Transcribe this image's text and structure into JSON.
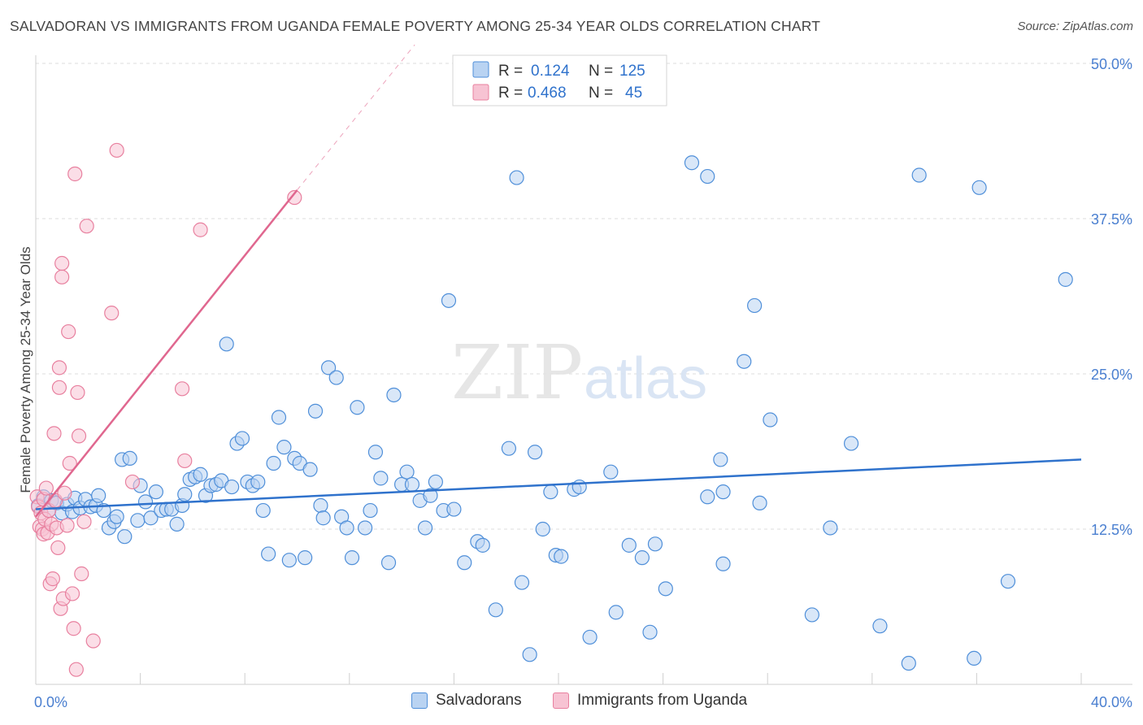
{
  "title": "SALVADORAN VS IMMIGRANTS FROM UGANDA FEMALE POVERTY AMONG 25-34 YEAR OLDS CORRELATION CHART",
  "source": "Source: ZipAtlas.com",
  "watermark": {
    "zip": "ZIP",
    "atlas": "atlas"
  },
  "colors": {
    "blue": "#4f8fd9",
    "blue_fill": "#b9d3f2",
    "blue_line": "#2f72cc",
    "pink": "#e8809f",
    "pink_fill": "#f7c3d3",
    "pink_line": "#e0678f",
    "tick_label": "#4a7fd0",
    "grid": "#dcdcdc"
  },
  "legend_top": [
    {
      "r_label": "R =",
      "r_value": "0.124",
      "n_label": "N =",
      "n_value": "125"
    },
    {
      "r_label": "R =",
      "r_value": "0.468",
      "n_label": "N =",
      "n_value": "45"
    }
  ],
  "legend_bottom": [
    "Salvadorans",
    "Immigrants from Uganda"
  ],
  "chart_data": {
    "type": "scatter",
    "title": "SALVADORAN VS IMMIGRANTS FROM UGANDA FEMALE POVERTY AMONG 25-34 YEAR OLDS CORRELATION CHART",
    "xlabel": "",
    "ylabel": "Female Poverty Among 25-34 Year Olds",
    "xlim": [
      0,
      40
    ],
    "ylim": [
      0,
      50
    ],
    "x_tick_labels": [
      "0.0%",
      "40.0%"
    ],
    "y_ticks": [
      12.5,
      25.0,
      37.5,
      50.0
    ],
    "y_tick_labels": [
      "12.5%",
      "25.0%",
      "37.5%",
      "50.0%"
    ],
    "grid": "horizontal dashed",
    "legend_position": "top-center",
    "series": [
      {
        "name": "Salvadorans",
        "r": 0.124,
        "n": 125,
        "trend": {
          "x": [
            0,
            40
          ],
          "y": [
            14.1,
            18.1
          ]
        },
        "points": [
          [
            0.1,
            14.4
          ],
          [
            0.3,
            15.1
          ],
          [
            0.5,
            14.0
          ],
          [
            0.6,
            14.8
          ],
          [
            0.8,
            14.6
          ],
          [
            1.0,
            13.8
          ],
          [
            1.2,
            14.5
          ],
          [
            1.4,
            13.9
          ],
          [
            1.5,
            15.0
          ],
          [
            1.7,
            14.2
          ],
          [
            1.9,
            14.9
          ],
          [
            2.1,
            14.3
          ],
          [
            2.3,
            14.4
          ],
          [
            2.4,
            15.2
          ],
          [
            2.6,
            14.0
          ],
          [
            2.8,
            12.6
          ],
          [
            3.0,
            13.1
          ],
          [
            3.1,
            13.5
          ],
          [
            3.3,
            18.1
          ],
          [
            3.4,
            11.9
          ],
          [
            3.6,
            18.2
          ],
          [
            3.9,
            13.2
          ],
          [
            4.0,
            16.0
          ],
          [
            4.2,
            14.7
          ],
          [
            4.4,
            13.4
          ],
          [
            4.6,
            15.5
          ],
          [
            4.8,
            14.0
          ],
          [
            5.0,
            14.1
          ],
          [
            5.2,
            14.1
          ],
          [
            5.4,
            12.9
          ],
          [
            5.6,
            14.4
          ],
          [
            5.7,
            15.3
          ],
          [
            5.9,
            16.5
          ],
          [
            6.1,
            16.7
          ],
          [
            6.3,
            16.9
          ],
          [
            6.5,
            15.2
          ],
          [
            6.7,
            16.0
          ],
          [
            6.9,
            16.1
          ],
          [
            7.1,
            16.4
          ],
          [
            7.3,
            27.4
          ],
          [
            7.5,
            15.9
          ],
          [
            7.7,
            19.4
          ],
          [
            7.9,
            19.8
          ],
          [
            8.1,
            16.3
          ],
          [
            8.3,
            16.0
          ],
          [
            8.5,
            16.3
          ],
          [
            8.7,
            14.0
          ],
          [
            8.9,
            10.5
          ],
          [
            9.1,
            17.8
          ],
          [
            9.3,
            21.5
          ],
          [
            9.5,
            19.1
          ],
          [
            9.7,
            10.0
          ],
          [
            9.9,
            18.2
          ],
          [
            10.1,
            17.8
          ],
          [
            10.3,
            10.2
          ],
          [
            10.5,
            17.3
          ],
          [
            10.7,
            22.0
          ],
          [
            10.9,
            14.4
          ],
          [
            11.0,
            13.4
          ],
          [
            11.2,
            25.5
          ],
          [
            11.5,
            24.7
          ],
          [
            11.7,
            13.5
          ],
          [
            11.9,
            12.6
          ],
          [
            12.1,
            10.2
          ],
          [
            12.3,
            22.3
          ],
          [
            12.6,
            12.6
          ],
          [
            12.8,
            14.0
          ],
          [
            13.0,
            18.7
          ],
          [
            13.2,
            16.6
          ],
          [
            13.5,
            9.8
          ],
          [
            13.7,
            23.3
          ],
          [
            14.0,
            16.1
          ],
          [
            14.2,
            17.1
          ],
          [
            14.4,
            16.1
          ],
          [
            14.7,
            14.8
          ],
          [
            14.9,
            12.6
          ],
          [
            15.1,
            15.2
          ],
          [
            15.3,
            16.3
          ],
          [
            15.6,
            14.0
          ],
          [
            15.8,
            30.9
          ],
          [
            16.0,
            14.1
          ],
          [
            16.4,
            9.8
          ],
          [
            16.9,
            11.5
          ],
          [
            17.1,
            11.2
          ],
          [
            17.6,
            6.0
          ],
          [
            18.1,
            19.0
          ],
          [
            18.4,
            40.8
          ],
          [
            18.6,
            8.2
          ],
          [
            18.9,
            2.4
          ],
          [
            19.1,
            18.7
          ],
          [
            19.4,
            12.5
          ],
          [
            19.7,
            15.5
          ],
          [
            19.9,
            10.4
          ],
          [
            20.1,
            10.3
          ],
          [
            20.6,
            15.7
          ],
          [
            20.8,
            15.9
          ],
          [
            21.2,
            3.8
          ],
          [
            22.0,
            17.1
          ],
          [
            22.2,
            5.8
          ],
          [
            22.7,
            11.2
          ],
          [
            23.2,
            10.2
          ],
          [
            23.5,
            4.2
          ],
          [
            23.7,
            11.3
          ],
          [
            24.1,
            7.7
          ],
          [
            25.1,
            42.0
          ],
          [
            25.7,
            40.9
          ],
          [
            25.7,
            15.1
          ],
          [
            26.2,
            18.1
          ],
          [
            26.3,
            15.5
          ],
          [
            26.3,
            9.7
          ],
          [
            27.1,
            26.0
          ],
          [
            27.5,
            30.5
          ],
          [
            27.7,
            14.6
          ],
          [
            28.1,
            21.3
          ],
          [
            29.7,
            5.6
          ],
          [
            30.4,
            12.6
          ],
          [
            31.2,
            19.4
          ],
          [
            32.3,
            4.7
          ],
          [
            33.4,
            1.7
          ],
          [
            33.8,
            41.0
          ],
          [
            35.9,
            2.1
          ],
          [
            36.1,
            40.0
          ],
          [
            37.2,
            8.3
          ],
          [
            39.4,
            32.6
          ]
        ]
      },
      {
        "name": "Immigrants from Uganda",
        "r": 0.468,
        "n": 45,
        "trend": {
          "x": [
            0,
            10.0
          ],
          "y": [
            13.5,
            39.8
          ]
        },
        "trend_dashed": {
          "x": [
            10.0,
            14.5
          ],
          "y": [
            39.8,
            51.5
          ]
        },
        "points": [
          [
            0.05,
            15.1
          ],
          [
            0.1,
            14.3
          ],
          [
            0.15,
            12.7
          ],
          [
            0.2,
            13.8
          ],
          [
            0.25,
            12.5
          ],
          [
            0.3,
            14.9
          ],
          [
            0.3,
            12.1
          ],
          [
            0.35,
            13.3
          ],
          [
            0.4,
            15.8
          ],
          [
            0.45,
            12.2
          ],
          [
            0.5,
            14.0
          ],
          [
            0.55,
            8.1
          ],
          [
            0.6,
            12.9
          ],
          [
            0.65,
            8.5
          ],
          [
            0.7,
            20.2
          ],
          [
            0.75,
            14.8
          ],
          [
            0.8,
            12.6
          ],
          [
            0.85,
            11.0
          ],
          [
            0.9,
            23.9
          ],
          [
            0.95,
            6.1
          ],
          [
            1.0,
            32.8
          ],
          [
            1.05,
            6.9
          ],
          [
            1.1,
            15.4
          ],
          [
            1.2,
            12.8
          ],
          [
            1.25,
            28.4
          ],
          [
            1.3,
            17.8
          ],
          [
            1.4,
            7.3
          ],
          [
            1.45,
            4.5
          ],
          [
            1.5,
            41.1
          ],
          [
            1.55,
            1.2
          ],
          [
            1.6,
            23.5
          ],
          [
            1.65,
            20.0
          ],
          [
            1.75,
            8.9
          ],
          [
            1.85,
            13.1
          ],
          [
            1.95,
            36.9
          ],
          [
            2.2,
            3.5
          ],
          [
            2.9,
            29.9
          ],
          [
            3.1,
            43.0
          ],
          [
            3.7,
            16.3
          ],
          [
            5.6,
            23.8
          ],
          [
            5.7,
            18.0
          ],
          [
            6.3,
            36.6
          ],
          [
            9.9,
            39.2
          ],
          [
            0.9,
            25.5
          ],
          [
            1.0,
            33.9
          ]
        ]
      }
    ]
  }
}
